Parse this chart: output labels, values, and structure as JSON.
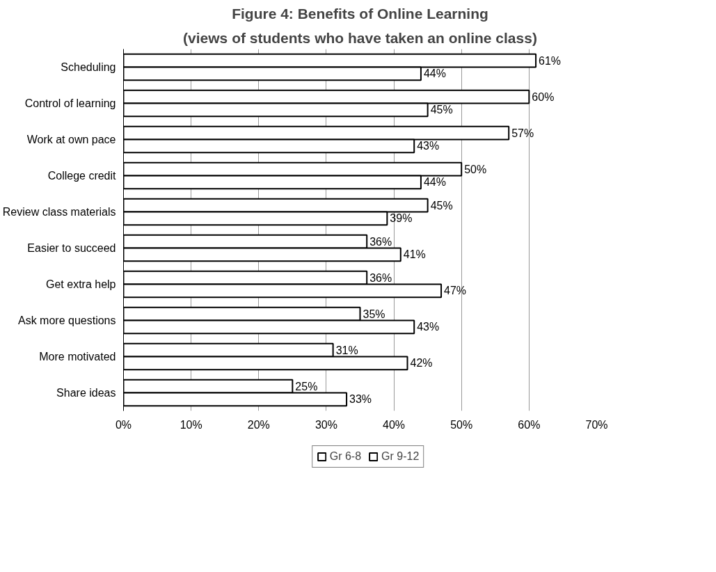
{
  "chart_data": {
    "type": "bar",
    "orientation": "horizontal",
    "title": "Figure 4: Benefits of Online Learning",
    "subtitle": "(views of students who have taken an online class)",
    "categories": [
      "Scheduling",
      "Control of learning",
      "Work at own pace",
      "College credit",
      "Review class materials",
      "Easier to succeed",
      "Get extra help",
      "Ask more questions",
      "More motivated",
      "Share ideas"
    ],
    "series": [
      {
        "name": "Gr 6-8",
        "color": "#ffffff",
        "values": [
          61,
          60,
          57,
          50,
          45,
          36,
          36,
          35,
          31,
          25
        ],
        "value_labels": [
          "61%",
          "60%",
          "57%",
          "50%",
          "45%",
          "36%",
          "36%",
          "35%",
          "31%",
          "25%"
        ]
      },
      {
        "name": "Gr 9-12",
        "color": "#ffffff",
        "values": [
          44,
          45,
          43,
          44,
          39,
          41,
          47,
          43,
          42,
          33
        ],
        "value_labels": [
          "44%",
          "45%",
          "43%",
          "44%",
          "39%",
          "41%",
          "47%",
          "43%",
          "42%",
          "33%"
        ]
      }
    ],
    "xlim": [
      0,
      70
    ],
    "xticks": [
      {
        "value": 0,
        "label": "0%"
      },
      {
        "value": 10,
        "label": "10%"
      },
      {
        "value": 20,
        "label": "20%"
      },
      {
        "value": 30,
        "label": "30%"
      },
      {
        "value": 40,
        "label": "40%"
      },
      {
        "value": 50,
        "label": "50%"
      },
      {
        "value": 60,
        "label": "60%"
      },
      {
        "value": 70,
        "label": "70%"
      }
    ],
    "grid": "x",
    "legend": "bottom"
  }
}
